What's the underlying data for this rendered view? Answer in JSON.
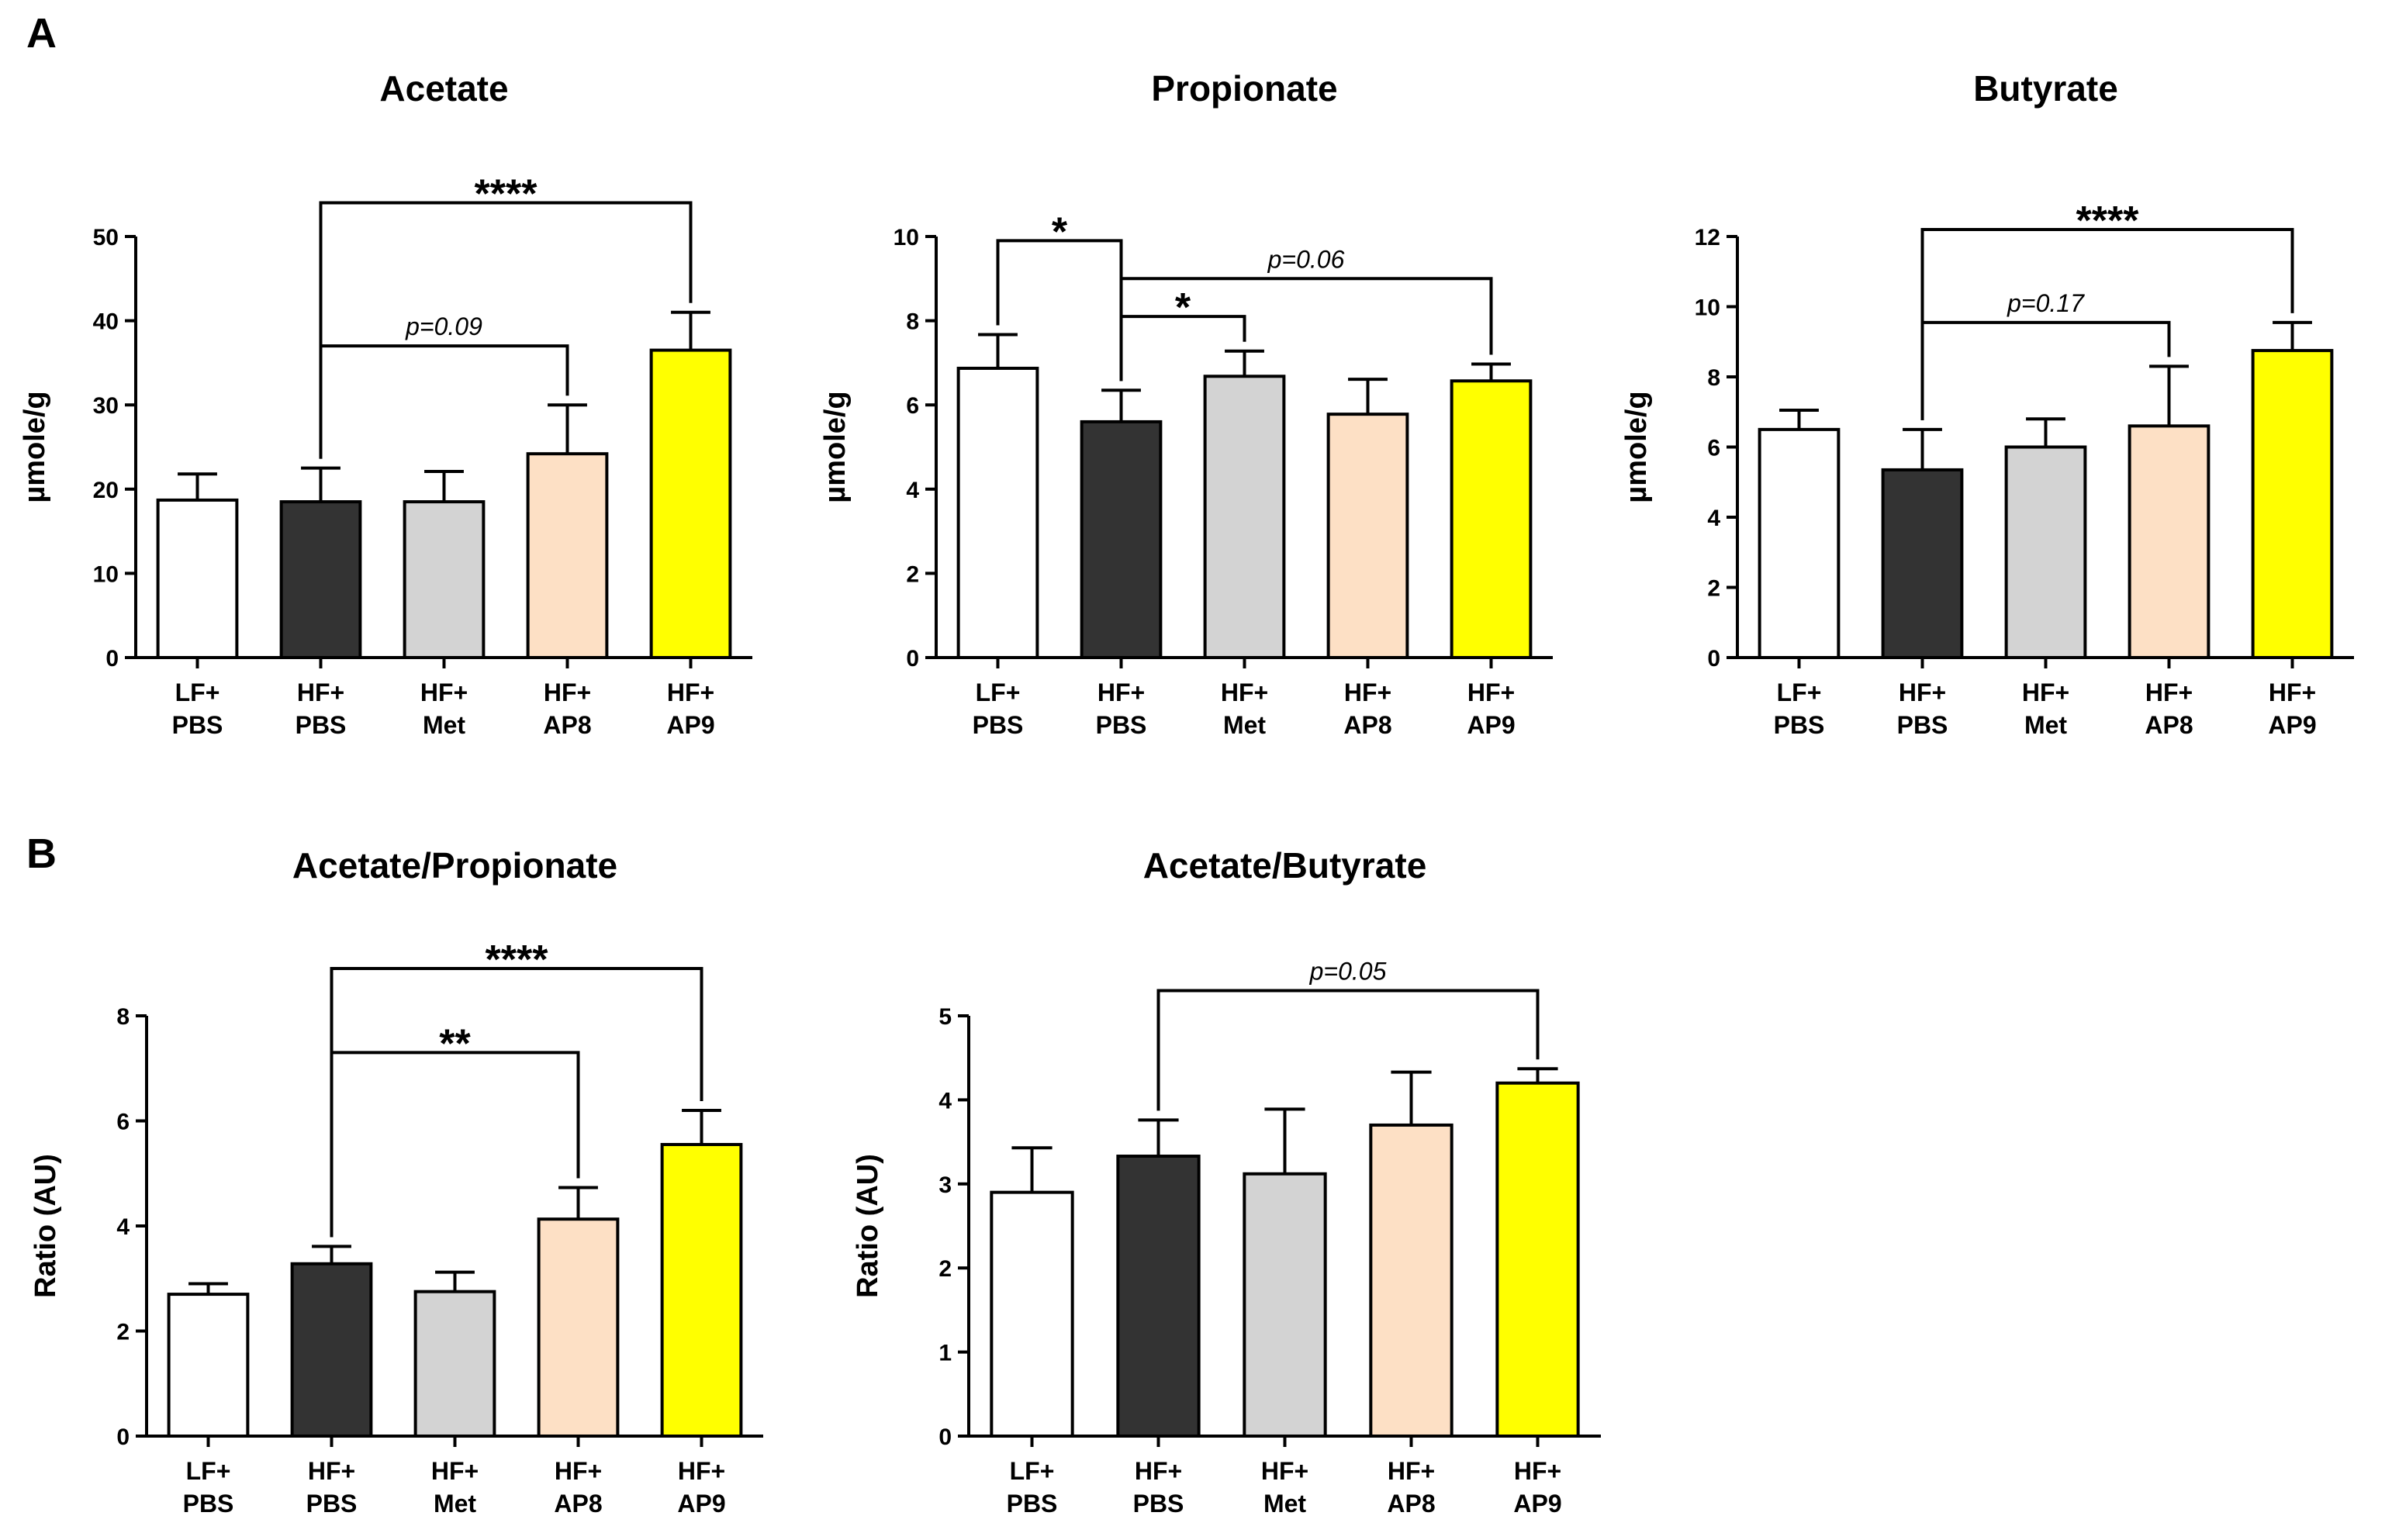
{
  "panels": {
    "a": "A",
    "b": "B"
  },
  "colors": {
    "LF+PBS": "#ffffff",
    "HF+PBS": "#333333",
    "HF+Met": "#d3d3d3",
    "HF+AP8": "#fde0c5",
    "HF+AP9": "#ffff00"
  },
  "chart_data": [
    {
      "type": "bar",
      "title": "Acetate",
      "ylabel": "µmole/g",
      "ylim": [
        0,
        50
      ],
      "yticks": [
        "0",
        "10",
        "20",
        "30",
        "40",
        "50"
      ],
      "categories": [
        [
          "LF+",
          "PBS"
        ],
        [
          "HF+",
          "PBS"
        ],
        [
          "HF+",
          "Met"
        ],
        [
          "HF+",
          "AP8"
        ],
        [
          "HF+",
          "AP9"
        ]
      ],
      "values": [
        18.7,
        18.5,
        18.5,
        24.2,
        36.5
      ],
      "errors": [
        3.1,
        4.0,
        3.6,
        5.8,
        4.5
      ],
      "annotations": [
        {
          "from": 1,
          "to": 4,
          "level": 54,
          "label": "****",
          "italic": false
        },
        {
          "from": 1,
          "to": 3,
          "level": 37,
          "label": "p=0.09",
          "italic": true
        }
      ]
    },
    {
      "type": "bar",
      "title": "Propionate",
      "ylabel": "µmole/g",
      "ylim": [
        0,
        10
      ],
      "yticks": [
        "0",
        "2",
        "4",
        "6",
        "8",
        "10"
      ],
      "categories": [
        [
          "LF+",
          "PBS"
        ],
        [
          "HF+",
          "PBS"
        ],
        [
          "HF+",
          "Met"
        ],
        [
          "HF+",
          "AP8"
        ],
        [
          "HF+",
          "AP9"
        ]
      ],
      "values": [
        6.87,
        5.6,
        6.68,
        5.78,
        6.57
      ],
      "errors": [
        0.8,
        0.75,
        0.6,
        0.83,
        0.4
      ],
      "annotations": [
        {
          "from": 0,
          "to": 1,
          "level": 9.9,
          "label": "*",
          "italic": false
        },
        {
          "from": 1,
          "to": 4,
          "level": 9.0,
          "label": "p=0.06",
          "italic": true
        },
        {
          "from": 1,
          "to": 2,
          "level": 8.1,
          "label": "*",
          "italic": false
        }
      ]
    },
    {
      "type": "bar",
      "title": "Butyrate",
      "ylabel": "µmole/g",
      "ylim": [
        0,
        12
      ],
      "yticks": [
        "0",
        "2",
        "4",
        "6",
        "8",
        "10",
        "12"
      ],
      "categories": [
        [
          "LF+",
          "PBS"
        ],
        [
          "HF+",
          "PBS"
        ],
        [
          "HF+",
          "Met"
        ],
        [
          "HF+",
          "AP8"
        ],
        [
          "HF+",
          "AP9"
        ]
      ],
      "values": [
        6.5,
        5.35,
        6.0,
        6.6,
        8.75
      ],
      "errors": [
        0.55,
        1.15,
        0.8,
        1.7,
        0.8
      ],
      "annotations": [
        {
          "from": 1,
          "to": 4,
          "level": 12.2,
          "label": "****",
          "italic": false
        },
        {
          "from": 1,
          "to": 3,
          "level": 9.55,
          "label": "p=0.17",
          "italic": true
        }
      ]
    },
    {
      "type": "bar",
      "title": "Acetate/Propionate",
      "ylabel": "Ratio (AU)",
      "ylim": [
        0,
        8
      ],
      "yticks": [
        "0",
        "2",
        "4",
        "6",
        "8"
      ],
      "categories": [
        [
          "LF+",
          "PBS"
        ],
        [
          "HF+",
          "PBS"
        ],
        [
          "HF+",
          "Met"
        ],
        [
          "HF+",
          "AP8"
        ],
        [
          "HF+",
          "AP9"
        ]
      ],
      "values": [
        2.7,
        3.28,
        2.75,
        4.13,
        5.55
      ],
      "errors": [
        0.2,
        0.33,
        0.37,
        0.6,
        0.65
      ],
      "annotations": [
        {
          "from": 1,
          "to": 4,
          "level": 8.9,
          "label": "****",
          "italic": false
        },
        {
          "from": 1,
          "to": 3,
          "level": 7.3,
          "label": "**",
          "italic": false
        }
      ]
    },
    {
      "type": "bar",
      "title": "Acetate/Butyrate",
      "ylabel": "Ratio (AU)",
      "ylim": [
        0,
        5
      ],
      "yticks": [
        "0",
        "1",
        "2",
        "3",
        "4",
        "5"
      ],
      "categories": [
        [
          "LF+",
          "PBS"
        ],
        [
          "HF+",
          "PBS"
        ],
        [
          "HF+",
          "Met"
        ],
        [
          "HF+",
          "AP8"
        ],
        [
          "HF+",
          "AP9"
        ]
      ],
      "values": [
        2.9,
        3.33,
        3.12,
        3.7,
        4.2
      ],
      "errors": [
        0.53,
        0.43,
        0.77,
        0.63,
        0.17
      ],
      "annotations": [
        {
          "from": 1,
          "to": 4,
          "level": 5.3,
          "label": "p=0.05",
          "italic": true
        }
      ]
    }
  ]
}
